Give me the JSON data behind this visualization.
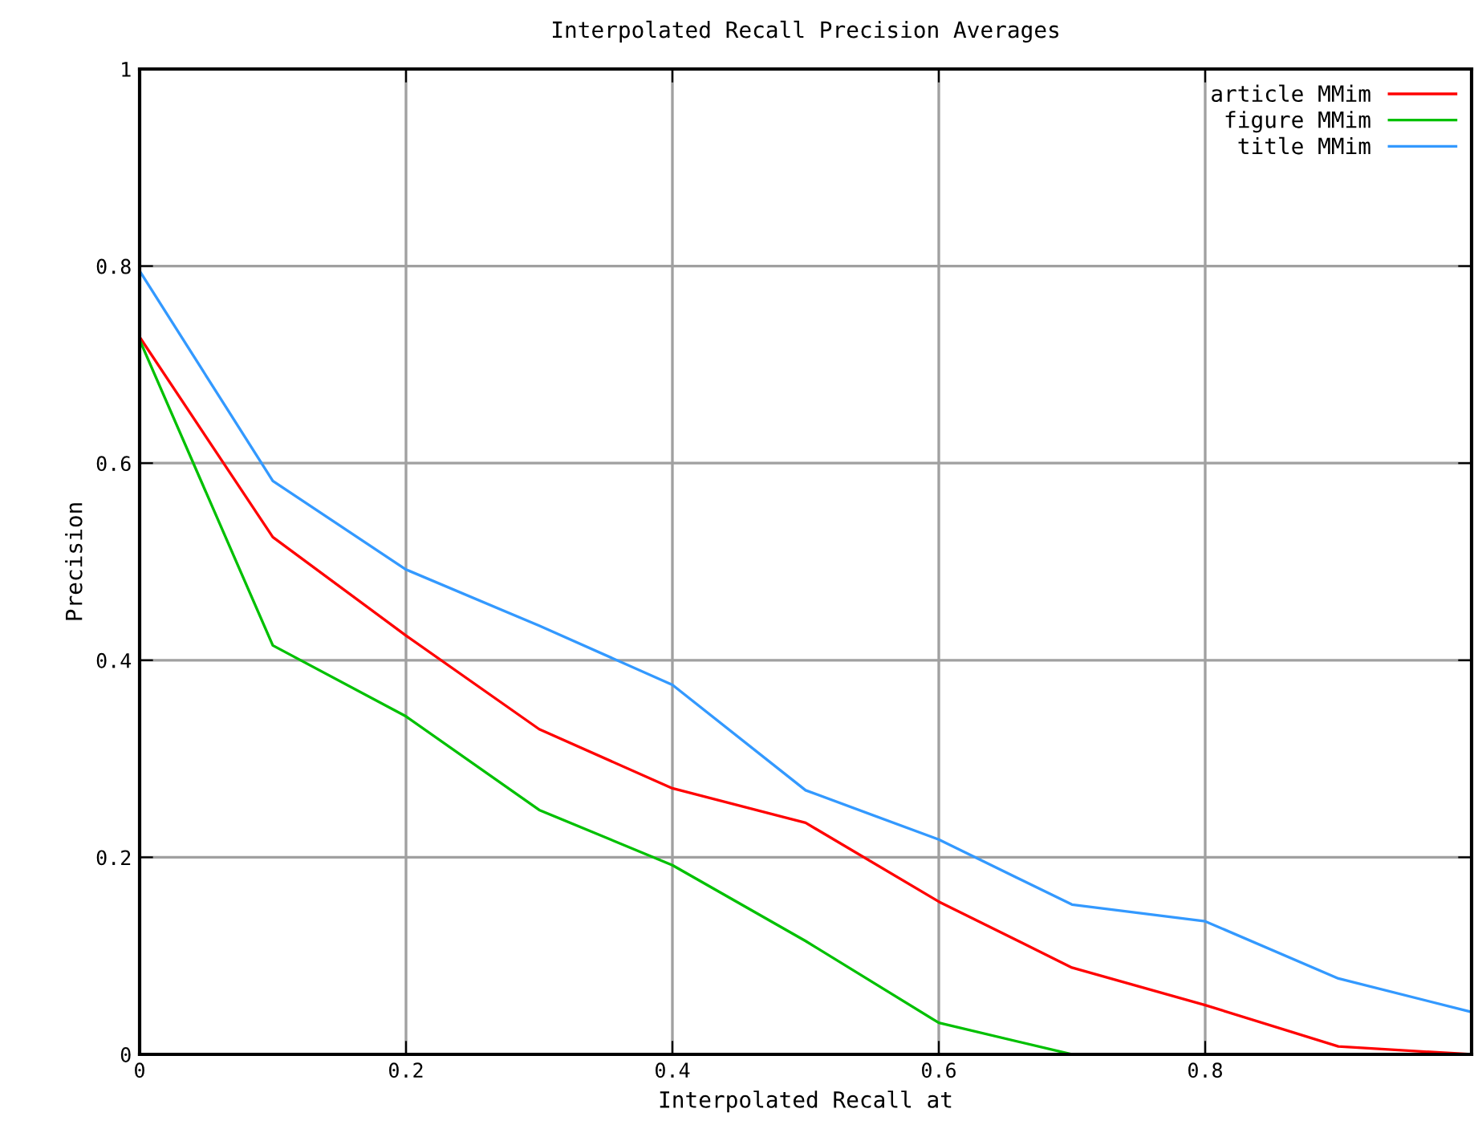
{
  "chart_data": {
    "type": "line",
    "title": "Interpolated Recall Precision Averages",
    "xlabel": "Interpolated Recall at",
    "ylabel": "Precision",
    "x": [
      0,
      0.1,
      0.2,
      0.3,
      0.4,
      0.5,
      0.6,
      0.7,
      0.8,
      0.9,
      1
    ],
    "series": [
      {
        "name": "article MMim",
        "color": "#ff0000",
        "values": [
          0.728,
          0.525,
          0.425,
          0.33,
          0.27,
          0.235,
          0.155,
          0.088,
          0.05,
          0.008,
          0.0
        ]
      },
      {
        "name": "figure MMim",
        "color": "#00c000",
        "values": [
          0.725,
          0.415,
          0.343,
          0.248,
          0.192,
          0.115,
          0.032,
          0.0,
          null,
          null,
          null
        ]
      },
      {
        "name": "title MMim",
        "color": "#3399ff",
        "values": [
          0.795,
          0.582,
          0.492,
          0.435,
          0.375,
          0.268,
          0.218,
          0.152,
          0.135,
          0.077,
          0.043
        ]
      }
    ],
    "xlim": [
      0,
      1
    ],
    "ylim": [
      0,
      1
    ],
    "xticks": [
      0,
      0.2,
      0.4,
      0.6,
      0.8
    ],
    "yticks": [
      0,
      0.2,
      0.4,
      0.6,
      0.8,
      1
    ],
    "grid": true,
    "legend": "top right",
    "marker": "none",
    "line_style": "solid"
  }
}
